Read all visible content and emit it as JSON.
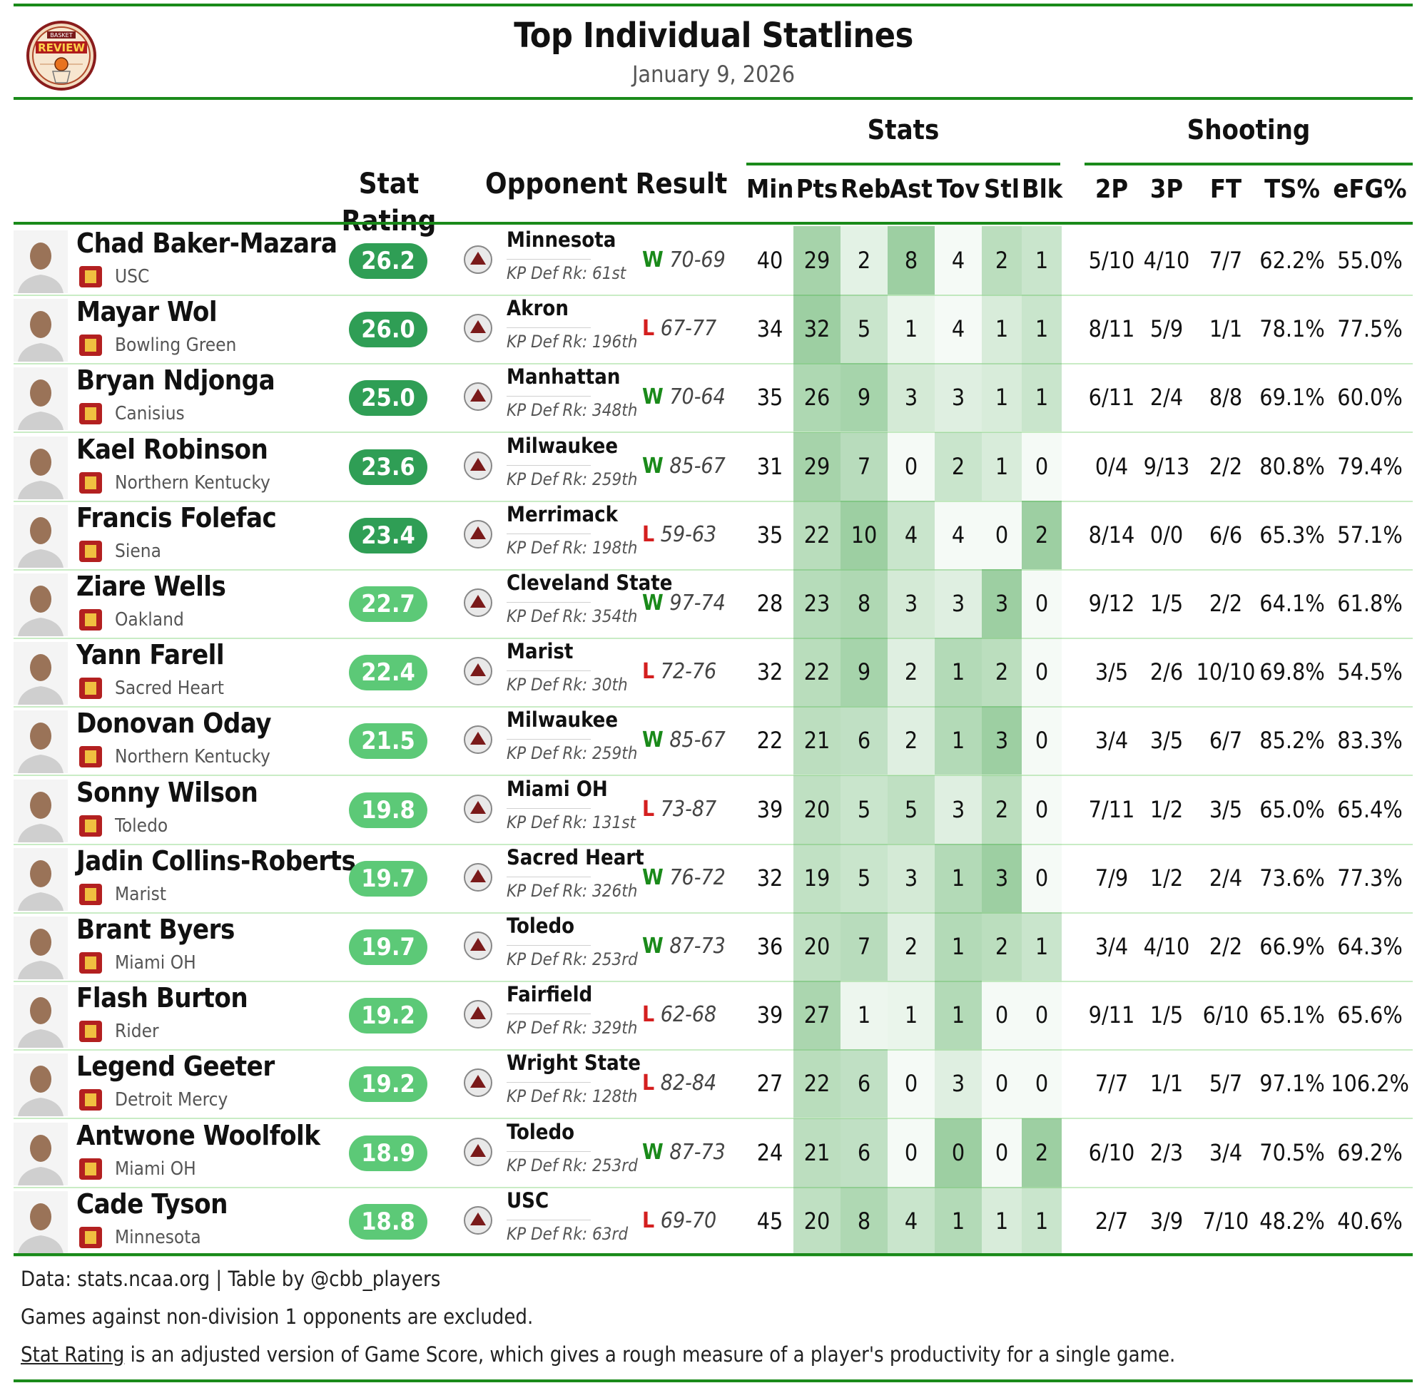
{
  "header": {
    "title": "Top Individual Statlines",
    "subtitle": "January 9, 2026",
    "logo_top": "BASKET",
    "logo_main": "REVIEW"
  },
  "groups": {
    "stats": "Stats",
    "shooting": "Shooting"
  },
  "columns": {
    "rating": "Stat Rating",
    "opponent": "Opponent",
    "result": "Result",
    "stats": [
      "Min",
      "Pts",
      "Reb",
      "Ast",
      "Tov",
      "Stl",
      "Blk"
    ],
    "shooting": [
      "2P",
      "3P",
      "FT",
      "TS%",
      "eFG%"
    ]
  },
  "colors": {
    "accent": "#1a8a1a",
    "win": "#1a8a1a",
    "loss": "#d41f1f",
    "pill_dark": "#2f9e55",
    "pill_light": "#5cc977"
  },
  "chart_data": {
    "type": "table",
    "rows": [
      {
        "player": "Chad Baker-Mazara",
        "team": "USC",
        "rating": "26.2",
        "opponent": "Minnesota",
        "kp": "KP Def Rk: 61st",
        "wl": "W",
        "score": "70-69",
        "stats": [
          "40",
          "29",
          "2",
          "8",
          "4",
          "2",
          "1"
        ],
        "shooting": [
          "5/10",
          "4/10",
          "7/7",
          "62.2%",
          "55.0%"
        ]
      },
      {
        "player": "Mayar Wol",
        "team": "Bowling Green",
        "rating": "26.0",
        "opponent": "Akron",
        "kp": "KP Def Rk: 196th",
        "wl": "L",
        "score": "67-77",
        "stats": [
          "34",
          "32",
          "5",
          "1",
          "4",
          "1",
          "1"
        ],
        "shooting": [
          "8/11",
          "5/9",
          "1/1",
          "78.1%",
          "77.5%"
        ]
      },
      {
        "player": "Bryan Ndjonga",
        "team": "Canisius",
        "rating": "25.0",
        "opponent": "Manhattan",
        "kp": "KP Def Rk: 348th",
        "wl": "W",
        "score": "70-64",
        "stats": [
          "35",
          "26",
          "9",
          "3",
          "3",
          "1",
          "1"
        ],
        "shooting": [
          "6/11",
          "2/4",
          "8/8",
          "69.1%",
          "60.0%"
        ]
      },
      {
        "player": "Kael Robinson",
        "team": "Northern Kentucky",
        "rating": "23.6",
        "opponent": "Milwaukee",
        "kp": "KP Def Rk: 259th",
        "wl": "W",
        "score": "85-67",
        "stats": [
          "31",
          "29",
          "7",
          "0",
          "2",
          "1",
          "0"
        ],
        "shooting": [
          "0/4",
          "9/13",
          "2/2",
          "80.8%",
          "79.4%"
        ]
      },
      {
        "player": "Francis Folefac",
        "team": "Siena",
        "rating": "23.4",
        "opponent": "Merrimack",
        "kp": "KP Def Rk: 198th",
        "wl": "L",
        "score": "59-63",
        "stats": [
          "35",
          "22",
          "10",
          "4",
          "4",
          "0",
          "2"
        ],
        "shooting": [
          "8/14",
          "0/0",
          "6/6",
          "65.3%",
          "57.1%"
        ]
      },
      {
        "player": "Ziare Wells",
        "team": "Oakland",
        "rating": "22.7",
        "opponent": "Cleveland State",
        "kp": "KP Def Rk: 354th",
        "wl": "W",
        "score": "97-74",
        "stats": [
          "28",
          "23",
          "8",
          "3",
          "3",
          "3",
          "0"
        ],
        "shooting": [
          "9/12",
          "1/5",
          "2/2",
          "64.1%",
          "61.8%"
        ]
      },
      {
        "player": "Yann Farell",
        "team": "Sacred Heart",
        "rating": "22.4",
        "opponent": "Marist",
        "kp": "KP Def Rk: 30th",
        "wl": "L",
        "score": "72-76",
        "stats": [
          "32",
          "22",
          "9",
          "2",
          "1",
          "2",
          "0"
        ],
        "shooting": [
          "3/5",
          "2/6",
          "10/10",
          "69.8%",
          "54.5%"
        ]
      },
      {
        "player": "Donovan Oday",
        "team": "Northern Kentucky",
        "rating": "21.5",
        "opponent": "Milwaukee",
        "kp": "KP Def Rk: 259th",
        "wl": "W",
        "score": "85-67",
        "stats": [
          "22",
          "21",
          "6",
          "2",
          "1",
          "3",
          "0"
        ],
        "shooting": [
          "3/4",
          "3/5",
          "6/7",
          "85.2%",
          "83.3%"
        ]
      },
      {
        "player": "Sonny Wilson",
        "team": "Toledo",
        "rating": "19.8",
        "opponent": "Miami OH",
        "kp": "KP Def Rk: 131st",
        "wl": "L",
        "score": "73-87",
        "stats": [
          "39",
          "20",
          "5",
          "5",
          "3",
          "2",
          "0"
        ],
        "shooting": [
          "7/11",
          "1/2",
          "3/5",
          "65.0%",
          "65.4%"
        ]
      },
      {
        "player": "Jadin Collins-Roberts",
        "team": "Marist",
        "rating": "19.7",
        "opponent": "Sacred Heart",
        "kp": "KP Def Rk: 326th",
        "wl": "W",
        "score": "76-72",
        "stats": [
          "32",
          "19",
          "5",
          "3",
          "1",
          "3",
          "0"
        ],
        "shooting": [
          "7/9",
          "1/2",
          "2/4",
          "73.6%",
          "77.3%"
        ]
      },
      {
        "player": "Brant Byers",
        "team": "Miami OH",
        "rating": "19.7",
        "opponent": "Toledo",
        "kp": "KP Def Rk: 253rd",
        "wl": "W",
        "score": "87-73",
        "stats": [
          "36",
          "20",
          "7",
          "2",
          "1",
          "2",
          "1"
        ],
        "shooting": [
          "3/4",
          "4/10",
          "2/2",
          "66.9%",
          "64.3%"
        ]
      },
      {
        "player": "Flash Burton",
        "team": "Rider",
        "rating": "19.2",
        "opponent": "Fairfield",
        "kp": "KP Def Rk: 329th",
        "wl": "L",
        "score": "62-68",
        "stats": [
          "39",
          "27",
          "1",
          "1",
          "1",
          "0",
          "0"
        ],
        "shooting": [
          "9/11",
          "1/5",
          "6/10",
          "65.1%",
          "65.6%"
        ]
      },
      {
        "player": "Legend Geeter",
        "team": "Detroit Mercy",
        "rating": "19.2",
        "opponent": "Wright State",
        "kp": "KP Def Rk: 128th",
        "wl": "L",
        "score": "82-84",
        "stats": [
          "27",
          "22",
          "6",
          "0",
          "3",
          "0",
          "0"
        ],
        "shooting": [
          "7/7",
          "1/1",
          "5/7",
          "97.1%",
          "106.2%"
        ]
      },
      {
        "player": "Antwone Woolfolk",
        "team": "Miami OH",
        "rating": "18.9",
        "opponent": "Toledo",
        "kp": "KP Def Rk: 253rd",
        "wl": "W",
        "score": "87-73",
        "stats": [
          "24",
          "21",
          "6",
          "0",
          "0",
          "0",
          "2"
        ],
        "shooting": [
          "6/10",
          "2/3",
          "3/4",
          "70.5%",
          "69.2%"
        ]
      },
      {
        "player": "Cade Tyson",
        "team": "Minnesota",
        "rating": "18.8",
        "opponent": "USC",
        "kp": "KP Def Rk: 63rd",
        "wl": "L",
        "score": "69-70",
        "stats": [
          "45",
          "20",
          "8",
          "4",
          "1",
          "1",
          "1"
        ],
        "shooting": [
          "2/7",
          "3/9",
          "7/10",
          "48.2%",
          "40.6%"
        ]
      }
    ]
  },
  "footer": {
    "line1": "Data: stats.ncaa.org | Table by @cbb_players",
    "line2": "Games against non-division 1 opponents are excluded.",
    "line3_link": "Stat Rating",
    "line3_rest": " is an adjusted version of Game Score, which gives a rough measure of a player's productivity for a single game."
  }
}
